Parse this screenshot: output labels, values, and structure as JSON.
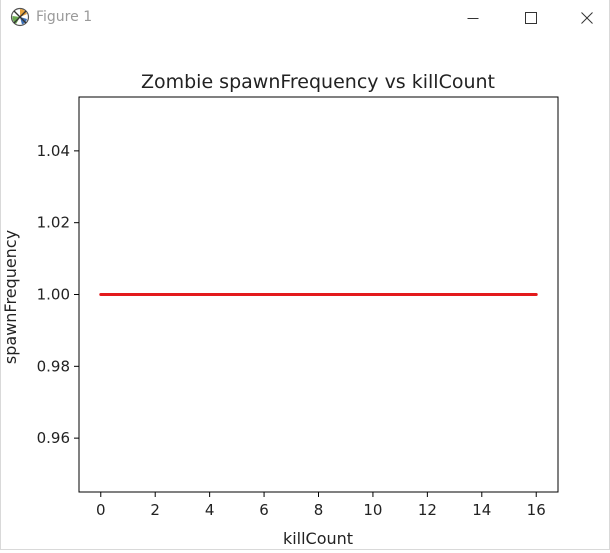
{
  "window": {
    "title": "Figure 1",
    "icon": "matplotlib-figure-icon",
    "controls": [
      "minimize-icon",
      "maximize-icon",
      "close-icon"
    ]
  },
  "chart_data": {
    "type": "line",
    "title": "Zombie spawnFrequency vs killCount",
    "xlabel": "killCount",
    "ylabel": "spawnFrequency",
    "xlim": [
      -0.8,
      16.8
    ],
    "ylim": [
      0.945,
      1.055
    ],
    "xticks": [
      0,
      2,
      4,
      6,
      8,
      10,
      12,
      14,
      16
    ],
    "xtick_labels": [
      "0",
      "2",
      "4",
      "6",
      "8",
      "10",
      "12",
      "14",
      "16"
    ],
    "yticks": [
      0.96,
      0.98,
      1.0,
      1.02,
      1.04
    ],
    "ytick_labels": [
      "0.96",
      "0.98",
      "1.00",
      "1.02",
      "1.04"
    ],
    "grid": false,
    "series": [
      {
        "color": "#e31a1c",
        "x": [
          0,
          1,
          2,
          3,
          4,
          5,
          6,
          7,
          8,
          9,
          10,
          11,
          12,
          13,
          14,
          15,
          16
        ],
        "y": [
          1,
          1,
          1,
          1,
          1,
          1,
          1,
          1,
          1,
          1,
          1,
          1,
          1,
          1,
          1,
          1,
          1
        ]
      }
    ]
  }
}
